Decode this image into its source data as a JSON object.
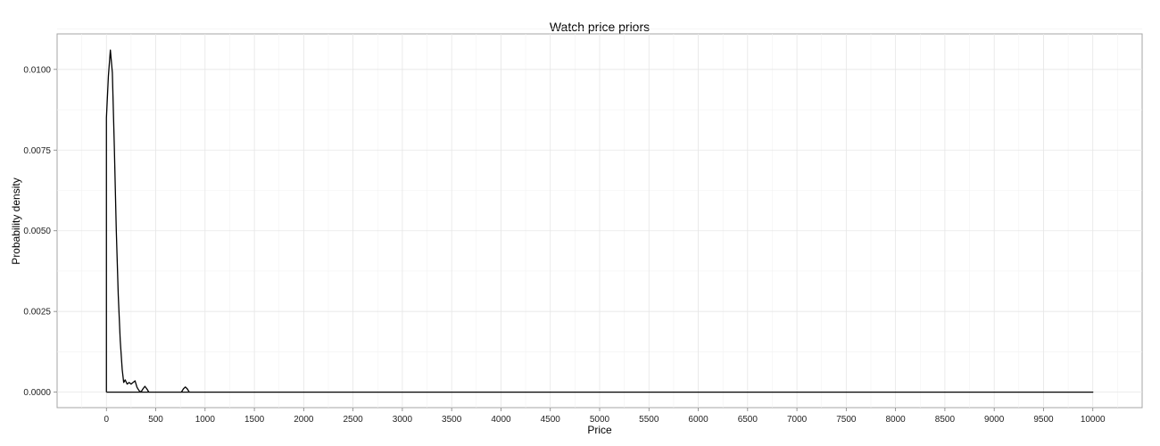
{
  "chart_data": {
    "type": "line",
    "title": "Watch price priors",
    "xlabel": "Price",
    "ylabel": "Probability density",
    "xlim": [
      -500,
      10500
    ],
    "ylim": [
      -0.00048,
      0.0111
    ],
    "x_ticks": [
      0,
      500,
      1000,
      1500,
      2000,
      2500,
      3000,
      3500,
      4000,
      4500,
      5000,
      5500,
      6000,
      6500,
      7000,
      7500,
      8000,
      8500,
      9000,
      9500,
      10000
    ],
    "x_tick_labels": [
      "0",
      "500",
      "1000",
      "1500",
      "2000",
      "2500",
      "3000",
      "3500",
      "4000",
      "4500",
      "5000",
      "5500",
      "6000",
      "6500",
      "7000",
      "7500",
      "8000",
      "8500",
      "9000",
      "9500",
      "10000"
    ],
    "y_ticks": [
      0.0,
      0.0025,
      0.005,
      0.0075,
      0.01
    ],
    "y_tick_labels": [
      "0.0000",
      "0.0025",
      "0.0050",
      "0.0075",
      "0.0100"
    ],
    "grid": true,
    "legend": "none",
    "series": [
      {
        "color": "#000000",
        "points": [
          [
            0,
            0.0
          ],
          [
            0,
            0.0085
          ],
          [
            20,
            0.0098
          ],
          [
            40,
            0.0106
          ],
          [
            60,
            0.0099
          ],
          [
            80,
            0.0076
          ],
          [
            100,
            0.005
          ],
          [
            120,
            0.003
          ],
          [
            140,
            0.0016
          ],
          [
            160,
            0.0007
          ],
          [
            175,
            0.0003
          ],
          [
            190,
            0.00038
          ],
          [
            210,
            0.00025
          ],
          [
            230,
            0.0003
          ],
          [
            250,
            0.00025
          ],
          [
            270,
            0.0003
          ],
          [
            290,
            0.00035
          ],
          [
            310,
            0.00015
          ],
          [
            330,
            5e-05
          ],
          [
            350,
            0.0
          ],
          [
            370,
            0.0001
          ],
          [
            390,
            0.00018
          ],
          [
            410,
            0.0001
          ],
          [
            430,
            0.0
          ],
          [
            760,
            0.0
          ],
          [
            780,
            0.0001
          ],
          [
            800,
            0.00016
          ],
          [
            820,
            0.0001
          ],
          [
            840,
            0.0
          ],
          [
            9750,
            0.0
          ],
          [
            9750,
            0.0
          ],
          [
            10000,
            0.0
          ],
          [
            0,
            0.0
          ]
        ]
      }
    ]
  }
}
